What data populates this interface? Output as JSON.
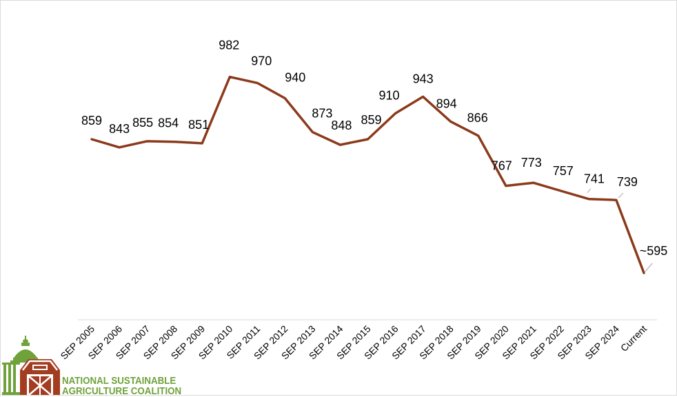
{
  "chart_data": {
    "type": "line",
    "categories": [
      "SEP 2005",
      "SEP 2006",
      "SEP 2007",
      "SEP 2008",
      "SEP 2009",
      "SEP 2010",
      "SEP 2011",
      "SEP 2012",
      "SEP 2013",
      "SEP 2014",
      "SEP 2015",
      "SEP 2016",
      "SEP 2017",
      "SEP 2018",
      "SEP 2019",
      "SEP 2020",
      "SEP 2021",
      "SEP 2022",
      "SEP 2023",
      "SEP 2024",
      "Current"
    ],
    "values": [
      859,
      843,
      855,
      854,
      851,
      982,
      970,
      940,
      873,
      848,
      859,
      910,
      943,
      894,
      866,
      767,
      773,
      757,
      741,
      739,
      595
    ],
    "data_labels": [
      "859",
      "843",
      "855",
      "854",
      "851",
      "982",
      "970",
      "940",
      "873",
      "848",
      "859",
      "910",
      "943",
      "894",
      "866",
      "767",
      "773",
      "757",
      "741",
      "739",
      "~595"
    ],
    "line_color": "#8b3a1b",
    "ylim": [
      400,
      1100
    ],
    "grid": false,
    "title": "",
    "xlabel": "",
    "ylabel": ""
  },
  "logo": {
    "line1": "NATIONAL SUSTAINABLE",
    "line2": "AGRICULTURE COALITION",
    "color": "#6fa23a",
    "barn_color": "#a23d22"
  }
}
